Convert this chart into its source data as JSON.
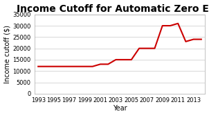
{
  "title": "Income Cutoff for Automatic Zero EFC",
  "xlabel": "Year",
  "ylabel": "Income cutoff ($)",
  "years": [
    1993,
    1994,
    1995,
    1996,
    1997,
    1998,
    1999,
    2000,
    2001,
    2002,
    2003,
    2004,
    2005,
    2006,
    2007,
    2008,
    2009,
    2010,
    2011,
    2012,
    2013,
    2014
  ],
  "values": [
    12000,
    12000,
    12000,
    12000,
    12000,
    12000,
    12000,
    12000,
    13000,
    13000,
    15000,
    15000,
    15000,
    20000,
    20000,
    20000,
    30000,
    30000,
    31000,
    23000,
    24000,
    24000
  ],
  "line_color": "#cc0000",
  "background_color": "#ffffff",
  "ylim": [
    0,
    35000
  ],
  "xlim_min": 1992.5,
  "xlim_max": 2014.5,
  "xtick_labels": [
    "1993",
    "1995",
    "1997",
    "1999",
    "2001",
    "2003",
    "2005",
    "2007",
    "2009",
    "2011",
    "2013"
  ],
  "xtick_values": [
    1993,
    1995,
    1997,
    1999,
    2001,
    2003,
    2005,
    2007,
    2009,
    2011,
    2013
  ],
  "ytick_values": [
    0,
    5000,
    10000,
    15000,
    20000,
    25000,
    30000,
    35000
  ],
  "title_fontsize": 10,
  "label_fontsize": 7,
  "tick_fontsize": 6,
  "linewidth": 1.5
}
